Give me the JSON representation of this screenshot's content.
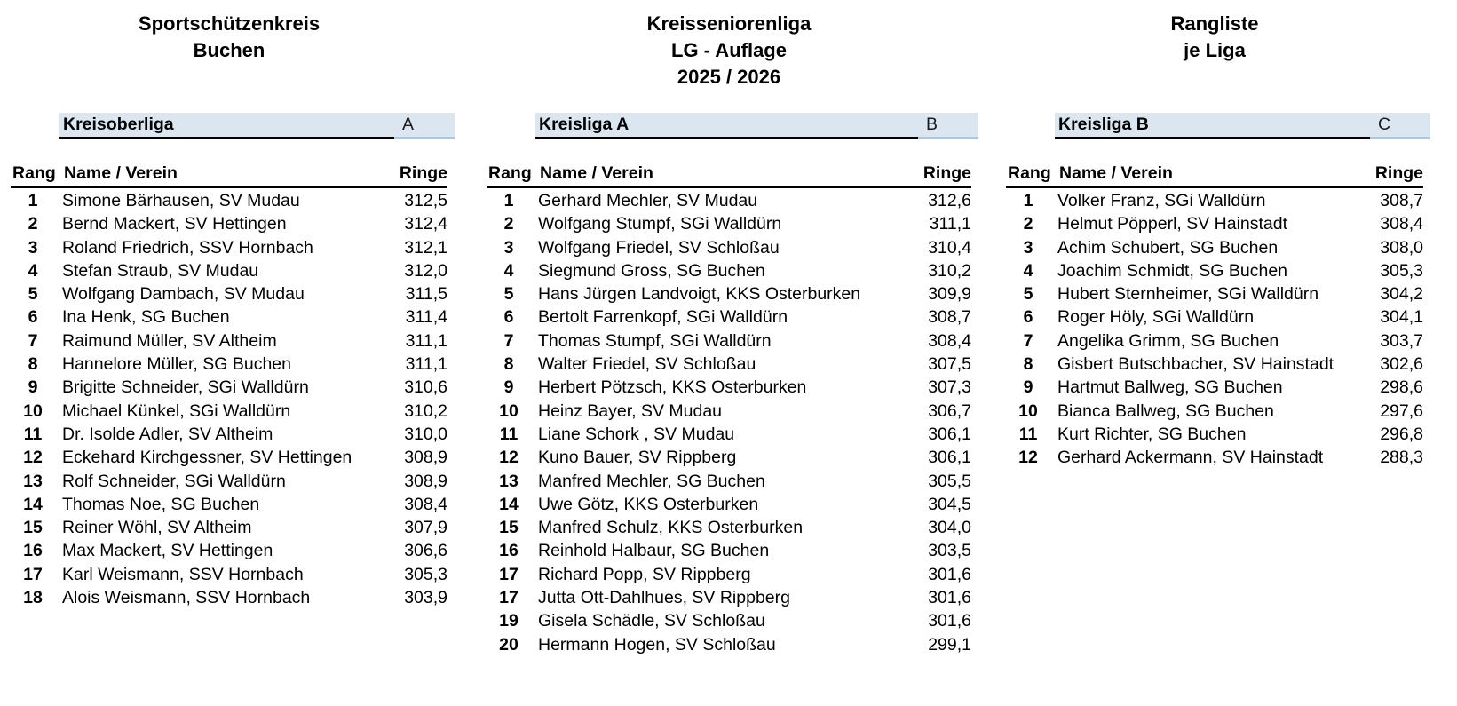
{
  "page_titles": {
    "left": {
      "line1": "Sportschützenkreis",
      "line2": "Buchen"
    },
    "center": {
      "line1": "Kreisseniorenliga",
      "line2": "LG - Auflage",
      "line3": "2025 / 2026"
    },
    "right": {
      "line1": "Rangliste",
      "line2": "je Liga"
    }
  },
  "columns_header": {
    "rank": "Rang",
    "name": "Name / Verein",
    "score": "Ringe"
  },
  "tables": [
    {
      "league": "Kreisoberliga",
      "group_letter": "A",
      "rows": [
        {
          "rank": "1",
          "name": "Simone Bärhausen, SV Mudau",
          "score": "312,5"
        },
        {
          "rank": "2",
          "name": "Bernd Mackert, SV Hettingen",
          "score": "312,4"
        },
        {
          "rank": "3",
          "name": "Roland Friedrich, SSV Hornbach",
          "score": "312,1"
        },
        {
          "rank": "4",
          "name": "Stefan Straub, SV Mudau",
          "score": "312,0"
        },
        {
          "rank": "5",
          "name": "Wolfgang Dambach, SV Mudau",
          "score": "311,5"
        },
        {
          "rank": "6",
          "name": "Ina Henk, SG Buchen",
          "score": "311,4"
        },
        {
          "rank": "7",
          "name": "Raimund Müller, SV Altheim",
          "score": "311,1"
        },
        {
          "rank": "8",
          "name": "Hannelore Müller, SG Buchen",
          "score": "311,1"
        },
        {
          "rank": "9",
          "name": "Brigitte Schneider, SGi Walldürn",
          "score": "310,6"
        },
        {
          "rank": "10",
          "name": "Michael Künkel, SGi Walldürn",
          "score": "310,2"
        },
        {
          "rank": "11",
          "name": "Dr. Isolde Adler, SV Altheim",
          "score": "310,0"
        },
        {
          "rank": "12",
          "name": "Eckehard Kirchgessner, SV Hettingen",
          "score": "308,9"
        },
        {
          "rank": "13",
          "name": "Rolf Schneider, SGi Walldürn",
          "score": "308,9"
        },
        {
          "rank": "14",
          "name": "Thomas Noe, SG Buchen",
          "score": "308,4"
        },
        {
          "rank": "15",
          "name": "Reiner Wöhl, SV Altheim",
          "score": "307,9"
        },
        {
          "rank": "16",
          "name": "Max Mackert, SV Hettingen",
          "score": "306,6"
        },
        {
          "rank": "17",
          "name": "Karl Weismann, SSV Hornbach",
          "score": "305,3"
        },
        {
          "rank": "18",
          "name": "Alois Weismann, SSV Hornbach",
          "score": "303,9"
        }
      ]
    },
    {
      "league": "Kreisliga A",
      "group_letter": "B",
      "rows": [
        {
          "rank": "1",
          "name": "Gerhard Mechler, SV Mudau",
          "score": "312,6"
        },
        {
          "rank": "2",
          "name": "Wolfgang Stumpf, SGi Walldürn",
          "score": "311,1"
        },
        {
          "rank": "3",
          "name": "Wolfgang Friedel, SV Schloßau",
          "score": "310,4"
        },
        {
          "rank": "4",
          "name": "Siegmund Gross, SG Buchen",
          "score": "310,2"
        },
        {
          "rank": "5",
          "name": "Hans Jürgen Landvoigt, KKS Osterburken",
          "score": "309,9"
        },
        {
          "rank": "6",
          "name": "Bertolt Farrenkopf, SGi Walldürn",
          "score": "308,7"
        },
        {
          "rank": "7",
          "name": "Thomas Stumpf, SGi Walldürn",
          "score": "308,4"
        },
        {
          "rank": "8",
          "name": "Walter Friedel, SV Schloßau",
          "score": "307,5"
        },
        {
          "rank": "9",
          "name": "Herbert Pötzsch, KKS Osterburken",
          "score": "307,3"
        },
        {
          "rank": "10",
          "name": "Heinz Bayer, SV  Mudau",
          "score": "306,7"
        },
        {
          "rank": "11",
          "name": "Liane Schork , SV Mudau",
          "score": "306,1"
        },
        {
          "rank": "12",
          "name": "Kuno Bauer, SV Rippberg",
          "score": "306,1"
        },
        {
          "rank": "13",
          "name": "Manfred Mechler, SG Buchen",
          "score": "305,5"
        },
        {
          "rank": "14",
          "name": "Uwe Götz, KKS Osterburken",
          "score": "304,5"
        },
        {
          "rank": "15",
          "name": "Manfred Schulz, KKS Osterburken",
          "score": "304,0"
        },
        {
          "rank": "16",
          "name": "Reinhold Halbaur, SG Buchen",
          "score": "303,5"
        },
        {
          "rank": "17",
          "name": "Richard Popp, SV Rippberg",
          "score": "301,6"
        },
        {
          "rank": "17",
          "name": "Jutta Ott-Dahlhues, SV Rippberg",
          "score": "301,6"
        },
        {
          "rank": "19",
          "name": "Gisela Schädle, SV Schloßau",
          "score": "301,6"
        },
        {
          "rank": "20",
          "name": "Hermann Hogen, SV Schloßau",
          "score": "299,1"
        }
      ]
    },
    {
      "league": "Kreisliga B",
      "group_letter": "C",
      "rows": [
        {
          "rank": "1",
          "name": "Volker Franz, SGi Walldürn",
          "score": "308,7"
        },
        {
          "rank": "2",
          "name": "Helmut Pöpperl, SV Hainstadt",
          "score": "308,4"
        },
        {
          "rank": "3",
          "name": "Achim Schubert, SG Buchen",
          "score": "308,0"
        },
        {
          "rank": "4",
          "name": "Joachim Schmidt, SG Buchen",
          "score": "305,3"
        },
        {
          "rank": "5",
          "name": "Hubert Sternheimer, SGi Walldürn",
          "score": "304,2"
        },
        {
          "rank": "6",
          "name": "Roger Höly, SGi Walldürn",
          "score": "304,1"
        },
        {
          "rank": "7",
          "name": "Angelika Grimm, SG Buchen",
          "score": "303,7"
        },
        {
          "rank": "8",
          "name": "Gisbert Butschbacher, SV Hainstadt",
          "score": "302,6"
        },
        {
          "rank": "9",
          "name": "Hartmut Ballweg, SG Buchen",
          "score": "298,6"
        },
        {
          "rank": "10",
          "name": "Bianca Ballweg, SG Buchen",
          "score": "297,6"
        },
        {
          "rank": "11",
          "name": "Kurt Richter, SG Buchen",
          "score": "296,8"
        },
        {
          "rank": "12",
          "name": "Gerhard Ackermann, SV Hainstadt",
          "score": "288,3"
        }
      ]
    }
  ],
  "colors": {
    "band_background": "#dce6f1",
    "band_underline": "#000000",
    "letter_underline": "#b3c6d9",
    "text": "#000000"
  }
}
